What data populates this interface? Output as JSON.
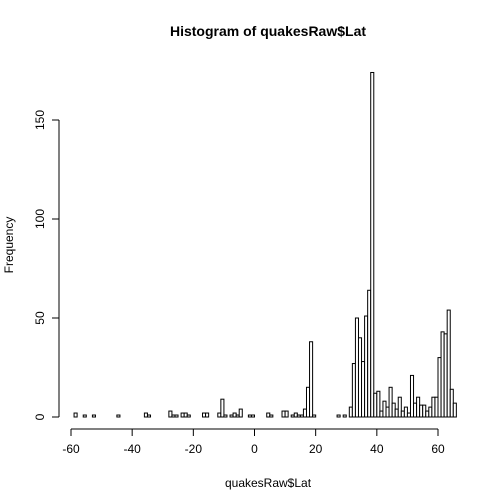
{
  "chart_data": {
    "type": "bar",
    "title": "Histogram of quakesRaw$Lat",
    "xlabel": "quakesRaw$Lat",
    "ylabel": "Frequency",
    "bin_width": 1,
    "xlim": [
      -60,
      66
    ],
    "ylim": [
      0,
      175
    ],
    "x_ticks": [
      -60,
      -40,
      -20,
      0,
      20,
      40,
      60
    ],
    "y_ticks": [
      0,
      50,
      100,
      150
    ],
    "bins": [
      {
        "x0": -59,
        "y": 2
      },
      {
        "x0": -58,
        "y": 0
      },
      {
        "x0": -57,
        "y": 0
      },
      {
        "x0": -56,
        "y": 1
      },
      {
        "x0": -55,
        "y": 0
      },
      {
        "x0": -54,
        "y": 0
      },
      {
        "x0": -53,
        "y": 1
      },
      {
        "x0": -52,
        "y": 0
      },
      {
        "x0": -51,
        "y": 0
      },
      {
        "x0": -50,
        "y": 0
      },
      {
        "x0": -49,
        "y": 0
      },
      {
        "x0": -48,
        "y": 0
      },
      {
        "x0": -47,
        "y": 0
      },
      {
        "x0": -46,
        "y": 0
      },
      {
        "x0": -45,
        "y": 1
      },
      {
        "x0": -44,
        "y": 0
      },
      {
        "x0": -43,
        "y": 0
      },
      {
        "x0": -42,
        "y": 0
      },
      {
        "x0": -41,
        "y": 0
      },
      {
        "x0": -40,
        "y": 0
      },
      {
        "x0": -39,
        "y": 0
      },
      {
        "x0": -38,
        "y": 0
      },
      {
        "x0": -37,
        "y": 0
      },
      {
        "x0": -36,
        "y": 2
      },
      {
        "x0": -35,
        "y": 1
      },
      {
        "x0": -34,
        "y": 0
      },
      {
        "x0": -33,
        "y": 0
      },
      {
        "x0": -32,
        "y": 0
      },
      {
        "x0": -31,
        "y": 0
      },
      {
        "x0": -30,
        "y": 0
      },
      {
        "x0": -29,
        "y": 0
      },
      {
        "x0": -28,
        "y": 3
      },
      {
        "x0": -27,
        "y": 1
      },
      {
        "x0": -26,
        "y": 1
      },
      {
        "x0": -25,
        "y": 0
      },
      {
        "x0": -24,
        "y": 2
      },
      {
        "x0": -23,
        "y": 2
      },
      {
        "x0": -22,
        "y": 1
      },
      {
        "x0": -21,
        "y": 0
      },
      {
        "x0": -20,
        "y": 0
      },
      {
        "x0": -19,
        "y": 0
      },
      {
        "x0": -18,
        "y": 0
      },
      {
        "x0": -17,
        "y": 2
      },
      {
        "x0": -16,
        "y": 2
      },
      {
        "x0": -15,
        "y": 0
      },
      {
        "x0": -14,
        "y": 0
      },
      {
        "x0": -13,
        "y": 0
      },
      {
        "x0": -12,
        "y": 2
      },
      {
        "x0": -11,
        "y": 9
      },
      {
        "x0": -10,
        "y": 1
      },
      {
        "x0": -9,
        "y": 0
      },
      {
        "x0": -8,
        "y": 1
      },
      {
        "x0": -7,
        "y": 2
      },
      {
        "x0": -6,
        "y": 1
      },
      {
        "x0": -5,
        "y": 4
      },
      {
        "x0": -4,
        "y": 0
      },
      {
        "x0": -3,
        "y": 0
      },
      {
        "x0": -2,
        "y": 1
      },
      {
        "x0": -1,
        "y": 1
      },
      {
        "x0": 0,
        "y": 0
      },
      {
        "x0": 1,
        "y": 0
      },
      {
        "x0": 2,
        "y": 0
      },
      {
        "x0": 3,
        "y": 0
      },
      {
        "x0": 4,
        "y": 2
      },
      {
        "x0": 5,
        "y": 1
      },
      {
        "x0": 6,
        "y": 0
      },
      {
        "x0": 7,
        "y": 0
      },
      {
        "x0": 8,
        "y": 0
      },
      {
        "x0": 9,
        "y": 3
      },
      {
        "x0": 10,
        "y": 3
      },
      {
        "x0": 11,
        "y": 0
      },
      {
        "x0": 12,
        "y": 1
      },
      {
        "x0": 13,
        "y": 2
      },
      {
        "x0": 14,
        "y": 1
      },
      {
        "x0": 15,
        "y": 1
      },
      {
        "x0": 16,
        "y": 4
      },
      {
        "x0": 17,
        "y": 15
      },
      {
        "x0": 18,
        "y": 38
      },
      {
        "x0": 19,
        "y": 1
      },
      {
        "x0": 20,
        "y": 0
      },
      {
        "x0": 21,
        "y": 0
      },
      {
        "x0": 22,
        "y": 0
      },
      {
        "x0": 23,
        "y": 0
      },
      {
        "x0": 24,
        "y": 0
      },
      {
        "x0": 25,
        "y": 0
      },
      {
        "x0": 26,
        "y": 0
      },
      {
        "x0": 27,
        "y": 1
      },
      {
        "x0": 28,
        "y": 0
      },
      {
        "x0": 29,
        "y": 1
      },
      {
        "x0": 30,
        "y": 0
      },
      {
        "x0": 31,
        "y": 5
      },
      {
        "x0": 32,
        "y": 27
      },
      {
        "x0": 33,
        "y": 50
      },
      {
        "x0": 34,
        "y": 40
      },
      {
        "x0": 35,
        "y": 28
      },
      {
        "x0": 36,
        "y": 51
      },
      {
        "x0": 37,
        "y": 64
      },
      {
        "x0": 38,
        "y": 174
      },
      {
        "x0": 39,
        "y": 12
      },
      {
        "x0": 40,
        "y": 13
      },
      {
        "x0": 41,
        "y": 3
      },
      {
        "x0": 42,
        "y": 8
      },
      {
        "x0": 43,
        "y": 5
      },
      {
        "x0": 44,
        "y": 15
      },
      {
        "x0": 45,
        "y": 7
      },
      {
        "x0": 46,
        "y": 4
      },
      {
        "x0": 47,
        "y": 10
      },
      {
        "x0": 48,
        "y": 3
      },
      {
        "x0": 49,
        "y": 5
      },
      {
        "x0": 50,
        "y": 2
      },
      {
        "x0": 51,
        "y": 21
      },
      {
        "x0": 52,
        "y": 7
      },
      {
        "x0": 53,
        "y": 10
      },
      {
        "x0": 54,
        "y": 6
      },
      {
        "x0": 55,
        "y": 6
      },
      {
        "x0": 56,
        "y": 3
      },
      {
        "x0": 57,
        "y": 5
      },
      {
        "x0": 58,
        "y": 10
      },
      {
        "x0": 59,
        "y": 10
      },
      {
        "x0": 60,
        "y": 30
      },
      {
        "x0": 61,
        "y": 43
      },
      {
        "x0": 62,
        "y": 42
      },
      {
        "x0": 63,
        "y": 54
      },
      {
        "x0": 64,
        "y": 14
      },
      {
        "x0": 65,
        "y": 7
      }
    ]
  }
}
